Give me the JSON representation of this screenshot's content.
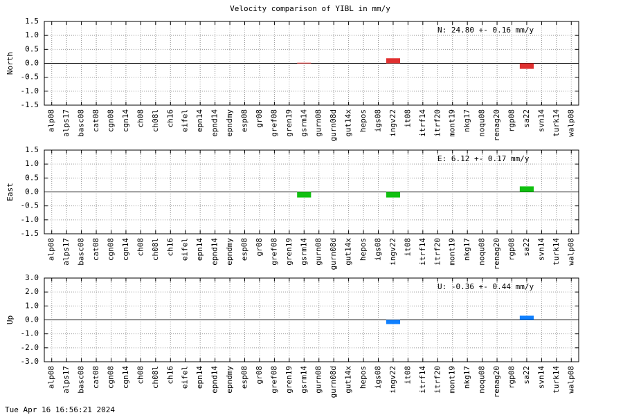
{
  "title": "Velocity comparison of YIBL in mm/y",
  "timestamp": "Tue Apr 16 16:56:21 2024",
  "chart_data": [
    {
      "type": "bar",
      "ylabel": "North",
      "annotation": "N:  24.80 +-  0.16 mm/y",
      "color": "#e03030",
      "grid": true,
      "categories": [
        "alp08",
        "alps17",
        "basc08",
        "cat08",
        "cgn08",
        "cgn14",
        "ch08",
        "ch08l",
        "ch16",
        "eifel",
        "epn14",
        "epnd14",
        "epndmy",
        "esp08",
        "gr08",
        "gref08",
        "gren19",
        "gsrm14",
        "gurn08",
        "gurn08d",
        "gut14x",
        "hepos",
        "igs08",
        "ingv22",
        "it08",
        "itrf14",
        "itrf20",
        "mont19",
        "nkg17",
        "noqu08",
        "renag20",
        "rgp08",
        "sa22",
        "svn14",
        "turk14",
        "walp08"
      ],
      "values": [
        null,
        null,
        null,
        null,
        null,
        null,
        null,
        null,
        null,
        null,
        null,
        null,
        null,
        null,
        null,
        null,
        null,
        0.02,
        null,
        null,
        null,
        null,
        null,
        0.18,
        null,
        null,
        null,
        null,
        null,
        null,
        null,
        null,
        -0.2,
        null,
        null,
        null
      ],
      "ylim": [
        -1.5,
        1.5
      ],
      "yticks": [
        -1.5,
        {
          "value": -1,
          "label": "-1.0"
        },
        -0.5,
        {
          "value": 0,
          "label": "0.0"
        },
        0.5,
        {
          "value": 1,
          "label": "1.0"
        },
        1.5
      ]
    },
    {
      "type": "bar",
      "ylabel": "East",
      "annotation": "E:   6.12 +-  0.17 mm/y",
      "color": "#10c010",
      "grid": true,
      "categories": [
        "alp08",
        "alps17",
        "basc08",
        "cat08",
        "cgn08",
        "cgn14",
        "ch08",
        "ch08l",
        "ch16",
        "eifel",
        "epn14",
        "epnd14",
        "epndmy",
        "esp08",
        "gr08",
        "gref08",
        "gren19",
        "gsrm14",
        "gurn08",
        "gurn08d",
        "gut14x",
        "hepos",
        "igs08",
        "ingv22",
        "it08",
        "itrf14",
        "itrf20",
        "mont19",
        "nkg17",
        "noqu08",
        "renag20",
        "rgp08",
        "sa22",
        "svn14",
        "turk14",
        "walp08"
      ],
      "values": [
        null,
        null,
        null,
        null,
        null,
        null,
        null,
        null,
        null,
        null,
        null,
        null,
        null,
        null,
        null,
        null,
        null,
        -0.2,
        null,
        null,
        null,
        null,
        null,
        -0.2,
        null,
        null,
        null,
        null,
        null,
        null,
        null,
        null,
        0.2,
        null,
        null,
        null
      ],
      "ylim": [
        -1.5,
        1.5
      ],
      "yticks": [
        -1.5,
        {
          "value": -1,
          "label": "-1.0"
        },
        -0.5,
        {
          "value": 0,
          "label": "0.0"
        },
        0.5,
        {
          "value": 1,
          "label": "1.0"
        },
        1.5
      ]
    },
    {
      "type": "bar",
      "ylabel": "Up",
      "annotation": "U:  -0.36 +-  0.44 mm/y",
      "color": "#1080ff",
      "grid": true,
      "categories": [
        "alp08",
        "alps17",
        "basc08",
        "cat08",
        "cgn08",
        "cgn14",
        "ch08",
        "ch08l",
        "ch16",
        "eifel",
        "epn14",
        "epnd14",
        "epndmy",
        "esp08",
        "gr08",
        "gref08",
        "gren19",
        "gsrm14",
        "gurn08",
        "gurn08d",
        "gut14x",
        "hepos",
        "igs08",
        "ingv22",
        "it08",
        "itrf14",
        "itrf20",
        "mont19",
        "nkg17",
        "noqu08",
        "renag20",
        "rgp08",
        "sa22",
        "svn14",
        "turk14",
        "walp08"
      ],
      "values": [
        null,
        null,
        null,
        null,
        null,
        null,
        null,
        null,
        null,
        null,
        null,
        null,
        null,
        null,
        null,
        null,
        null,
        null,
        null,
        null,
        null,
        null,
        null,
        -0.3,
        null,
        null,
        null,
        null,
        null,
        null,
        null,
        null,
        0.3,
        null,
        null,
        null
      ],
      "ylim": [
        -3,
        3
      ],
      "yticks": [
        {
          "value": -3,
          "label": "-3.0"
        },
        {
          "value": -2,
          "label": "-2.0"
        },
        {
          "value": -1,
          "label": "-1.0"
        },
        {
          "value": 0,
          "label": "0.0"
        },
        {
          "value": 1,
          "label": "1.0"
        },
        {
          "value": 2,
          "label": "2.0"
        },
        {
          "value": 3,
          "label": "3.0"
        }
      ]
    }
  ]
}
